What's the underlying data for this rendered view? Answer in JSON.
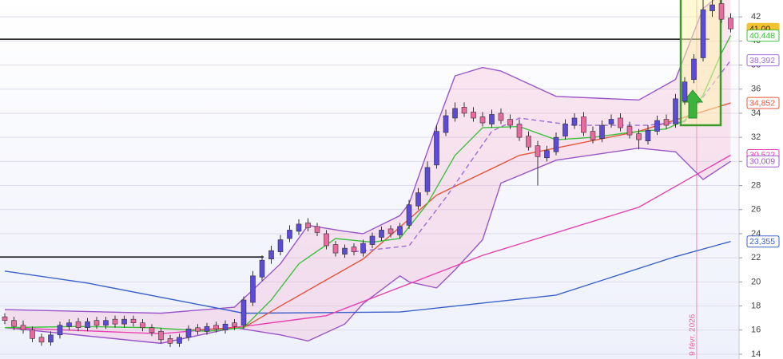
{
  "chart_data": {
    "type": "candlestick",
    "ylim": [
      13.6,
      43.4
    ],
    "yticks": [
      14,
      16,
      18,
      20,
      22,
      24,
      26,
      28,
      30,
      32,
      34,
      36,
      38,
      40,
      42
    ],
    "grid": true,
    "up_color": "#5a4bd8",
    "down_color": "#e86a9e",
    "open": [
      17.1,
      16.8,
      16.4,
      16.0,
      15.4,
      15.0,
      15.6,
      16.3,
      16.7,
      16.2,
      16.8,
      16.4,
      16.9,
      16.5,
      16.9,
      16.6,
      16.2,
      15.9,
      15.3,
      14.9,
      15.4,
      16.2,
      15.9,
      16.4,
      16.0,
      16.6,
      16.4,
      18.3,
      20.4,
      21.9,
      22.5,
      23.6,
      24.2,
      24.9,
      24.6,
      24.0,
      23.1,
      22.3,
      22.9,
      22.4,
      23.1,
      23.7,
      24.4,
      23.9,
      24.7,
      26.3,
      27.5,
      29.7,
      32.4,
      33.6,
      34.5,
      34.1,
      33.7,
      33.1,
      34.0,
      33.5,
      33.1,
      32.1,
      31.3,
      30.3,
      30.8,
      32.1,
      33.0,
      33.7,
      32.5,
      31.9,
      33.1,
      33.6,
      32.9,
      32.3,
      31.7,
      32.5,
      33.5,
      33.1,
      35.0,
      36.8,
      38.6,
      42.5,
      43.1,
      41.9
    ],
    "high": [
      17.4,
      17.1,
      16.8,
      16.3,
      15.7,
      15.9,
      16.7,
      16.9,
      17.0,
      17.0,
      17.1,
      17.1,
      17.2,
      17.2,
      17.2,
      16.9,
      16.5,
      16.2,
      15.6,
      15.7,
      16.4,
      16.5,
      16.6,
      16.7,
      16.8,
      16.9,
      18.8,
      20.9,
      22.2,
      23.0,
      23.9,
      24.7,
      25.2,
      25.3,
      24.9,
      24.3,
      23.4,
      23.1,
      23.2,
      23.5,
      24.1,
      24.6,
      24.7,
      24.9,
      26.8,
      27.8,
      30.0,
      33.0,
      34.3,
      34.9,
      34.9,
      34.5,
      34.1,
      34.3,
      34.4,
      33.9,
      33.5,
      32.5,
      31.7,
      31.3,
      32.4,
      33.5,
      34.0,
      34.1,
      32.9,
      33.4,
      33.9,
      34.0,
      33.3,
      32.7,
      33.0,
      33.8,
      33.9,
      35.6,
      37.0,
      38.9,
      43.5,
      43.4,
      43.4,
      42.3
    ],
    "low": [
      16.5,
      16.0,
      15.7,
      15.0,
      14.7,
      14.7,
      15.3,
      16.0,
      15.9,
      15.9,
      16.1,
      16.1,
      16.2,
      16.2,
      16.3,
      15.9,
      15.5,
      14.9,
      14.6,
      14.6,
      15.1,
      15.6,
      15.6,
      15.8,
      15.7,
      16.0,
      16.1,
      18.0,
      20.1,
      21.5,
      22.2,
      23.3,
      23.9,
      24.2,
      23.8,
      22.7,
      22.1,
      22.0,
      22.2,
      22.1,
      22.8,
      23.4,
      23.7,
      23.6,
      24.4,
      26.0,
      27.2,
      29.4,
      32.1,
      33.3,
      33.7,
      33.3,
      32.9,
      32.8,
      33.1,
      32.7,
      31.7,
      30.9,
      28.0,
      30.0,
      30.5,
      31.8,
      32.7,
      32.1,
      31.5,
      31.6,
      32.8,
      32.5,
      31.9,
      31.0,
      31.4,
      32.2,
      32.7,
      32.8,
      34.7,
      36.5,
      38.3,
      42.0,
      41.5,
      40.7
    ],
    "close": [
      16.8,
      16.3,
      16.0,
      15.3,
      15.0,
      15.6,
      16.4,
      16.6,
      16.2,
      16.7,
      16.4,
      16.8,
      16.5,
      16.9,
      16.6,
      16.2,
      15.8,
      15.2,
      14.9,
      15.4,
      16.1,
      15.9,
      16.3,
      16.1,
      16.5,
      16.3,
      18.5,
      20.5,
      21.8,
      22.6,
      23.5,
      24.3,
      24.8,
      24.5,
      24.1,
      23.0,
      22.4,
      22.8,
      22.5,
      23.2,
      23.8,
      24.3,
      24.0,
      24.6,
      26.4,
      27.4,
      29.5,
      32.5,
      33.8,
      34.4,
      34.0,
      33.6,
      33.2,
      33.9,
      33.4,
      33.0,
      32.0,
      31.2,
      30.4,
      30.9,
      32.0,
      33.1,
      33.6,
      32.4,
      31.8,
      33.0,
      33.5,
      32.8,
      32.2,
      31.8,
      32.6,
      33.4,
      33.0,
      35.2,
      36.6,
      38.5,
      42.6,
      43.0,
      41.8,
      41.0
    ],
    "series": [
      {
        "color": "#9a55c8",
        "fill_to_next": true,
        "x": [
          0,
          17,
          25,
          30,
          33,
          37,
          39,
          43,
          44,
          47,
          49,
          52,
          54,
          60,
          69,
          73,
          76,
          79
        ],
        "values": [
          17.7,
          17.4,
          17.9,
          21.5,
          24.7,
          24.2,
          24.0,
          25.5,
          26.5,
          33,
          37.1,
          37.8,
          37.5,
          35.4,
          35.1,
          36.8,
          42.7,
          44.5
        ]
      },
      {
        "color": "#9a55c8",
        "x": [
          0,
          17,
          25,
          30,
          33,
          37,
          39,
          43,
          44,
          47,
          49,
          52,
          54,
          60,
          69,
          73,
          76,
          79
        ],
        "values": [
          16.2,
          14.9,
          16.2,
          15.6,
          15.1,
          16.5,
          18.2,
          20.5,
          20.0,
          19.5,
          21.0,
          23.5,
          28.2,
          30.1,
          31.1,
          30.8,
          28.5,
          30.009
        ]
      },
      {
        "color": "#3a62c8",
        "x": [
          0,
          9,
          26,
          43,
          60,
          73,
          79
        ],
        "values": [
          20.9,
          19.9,
          17.4,
          17.5,
          18.9,
          22.1,
          23.355
        ]
      },
      {
        "color": "#e840b0",
        "x": [
          0,
          17,
          26,
          35,
          52,
          69,
          79
        ],
        "values": [
          16.2,
          15.7,
          16.3,
          17.2,
          22.2,
          26.2,
          30.522
        ]
      },
      {
        "color": "#e8553a",
        "x": [
          20,
          26,
          30,
          39,
          47,
          56,
          69,
          79
        ],
        "values": [
          16.0,
          16.2,
          18.0,
          21.9,
          27.2,
          30.5,
          32.5,
          34.852
        ]
      },
      {
        "color": "#a06ad8",
        "dash": true,
        "x": [
          38,
          44,
          48,
          53,
          56,
          62,
          70,
          74,
          79
        ],
        "values": [
          22.5,
          23.0,
          27.0,
          32.5,
          33.6,
          33.0,
          33.0,
          33.3,
          38.392
        ]
      },
      {
        "color": "#3cc23c",
        "x": [
          0,
          8,
          16,
          22,
          26,
          29,
          32,
          36,
          40,
          43,
          46,
          49,
          52,
          56,
          60,
          64,
          68,
          72,
          74,
          76,
          78,
          79
        ],
        "values": [
          16.2,
          16.3,
          16.2,
          15.9,
          16.2,
          18.5,
          21.5,
          23.6,
          23.3,
          23.6,
          26.5,
          30.5,
          32.8,
          32.9,
          31.8,
          32.0,
          32.4,
          32.7,
          33.4,
          35.5,
          39.0,
          40.448
        ]
      }
    ],
    "levels": [
      40.15,
      22.07
    ],
    "price_tags": [
      {
        "value": 41.0,
        "label": "41,00",
        "color": "#f2c230"
      },
      {
        "value": 40.448,
        "label": "40,448",
        "color": "#3cc23c"
      },
      {
        "value": 38.392,
        "label": "38,392",
        "color": "#a06ad8"
      },
      {
        "value": 34.852,
        "label": "34,852",
        "color": "#e8553a"
      },
      {
        "value": 30.522,
        "label": "30,522",
        "color": "#e840b0"
      },
      {
        "value": 30.009,
        "label": "30,009",
        "color": "#9a55c8"
      },
      {
        "value": 23.355,
        "label": "23,355",
        "color": "#3a62c8"
      }
    ],
    "annotation": "9 févr. 2026"
  }
}
